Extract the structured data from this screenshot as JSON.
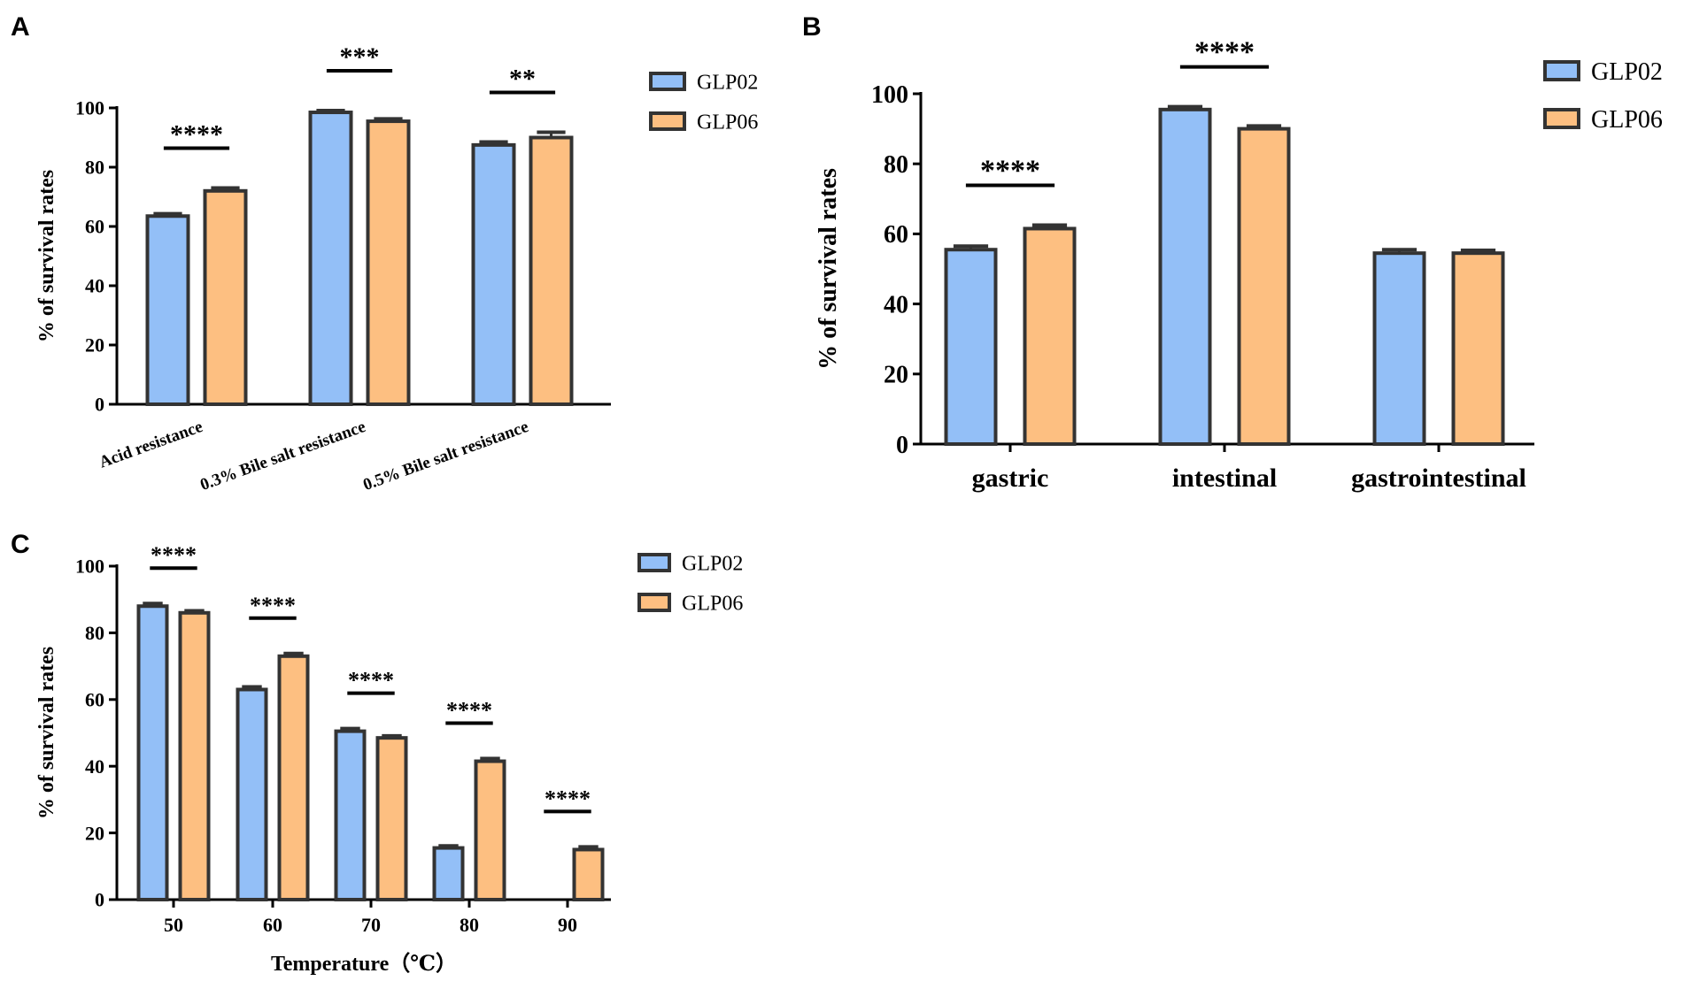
{
  "colors": {
    "GLP02": "#93bff7",
    "GLP06": "#fdbf81",
    "stroke": "#333333"
  },
  "chart_data": [
    {
      "panel": "A",
      "type": "bar",
      "ylabel": "% of survival rates",
      "xlabel": "",
      "ylim": [
        0,
        100
      ],
      "yticks": [
        "0",
        "20",
        "40",
        "60",
        "80",
        "100"
      ],
      "categories": [
        "Acid resistance",
        "0.3% Bile salt resistance",
        "0.5% Bile salt resistance"
      ],
      "series": [
        {
          "name": "GLP02",
          "values": [
            63.5,
            98.5,
            87.5
          ],
          "errors": [
            0.8,
            0.6,
            1.0
          ]
        },
        {
          "name": "GLP06",
          "values": [
            72,
            95.5,
            90
          ],
          "errors": [
            1.0,
            0.8,
            1.8
          ]
        }
      ],
      "significance": [
        "****",
        "***",
        "**"
      ],
      "legend": [
        "GLP02",
        "GLP06"
      ],
      "legend_position": "top-right"
    },
    {
      "panel": "B",
      "type": "bar",
      "ylabel": "% of survival rates",
      "xlabel": "",
      "ylim": [
        0,
        100
      ],
      "yticks": [
        "0",
        "20",
        "40",
        "60",
        "80",
        "100"
      ],
      "categories": [
        "gastric",
        "intestinal",
        "gastrointestinal"
      ],
      "series": [
        {
          "name": "GLP02",
          "values": [
            55.5,
            95.5,
            54.5
          ],
          "errors": [
            1.0,
            0.8,
            1.0
          ]
        },
        {
          "name": "GLP06",
          "values": [
            61.5,
            90,
            54.5
          ],
          "errors": [
            1.0,
            0.8,
            0.8
          ]
        }
      ],
      "significance": [
        "****",
        "****",
        ""
      ],
      "legend": [
        "GLP02",
        "GLP06"
      ],
      "legend_position": "top-right"
    },
    {
      "panel": "C",
      "type": "bar",
      "ylabel": "% of survival rates",
      "xlabel": "Temperature（℃）",
      "ylim": [
        0,
        100
      ],
      "yticks": [
        "0",
        "20",
        "40",
        "60",
        "80",
        "100"
      ],
      "categories": [
        "50",
        "60",
        "70",
        "80",
        "90"
      ],
      "series": [
        {
          "name": "GLP02",
          "values": [
            88,
            63,
            50.5,
            15.5,
            0
          ],
          "errors": [
            0.8,
            0.8,
            0.8,
            0.6,
            0
          ]
        },
        {
          "name": "GLP06",
          "values": [
            86,
            73,
            48.5,
            41.5,
            15
          ],
          "errors": [
            0.6,
            0.8,
            0.6,
            0.8,
            0.8
          ]
        }
      ],
      "significance": [
        "****",
        "****",
        "****",
        "****",
        "****"
      ],
      "legend": [
        "GLP02",
        "GLP06"
      ],
      "legend_position": "top-right"
    }
  ]
}
